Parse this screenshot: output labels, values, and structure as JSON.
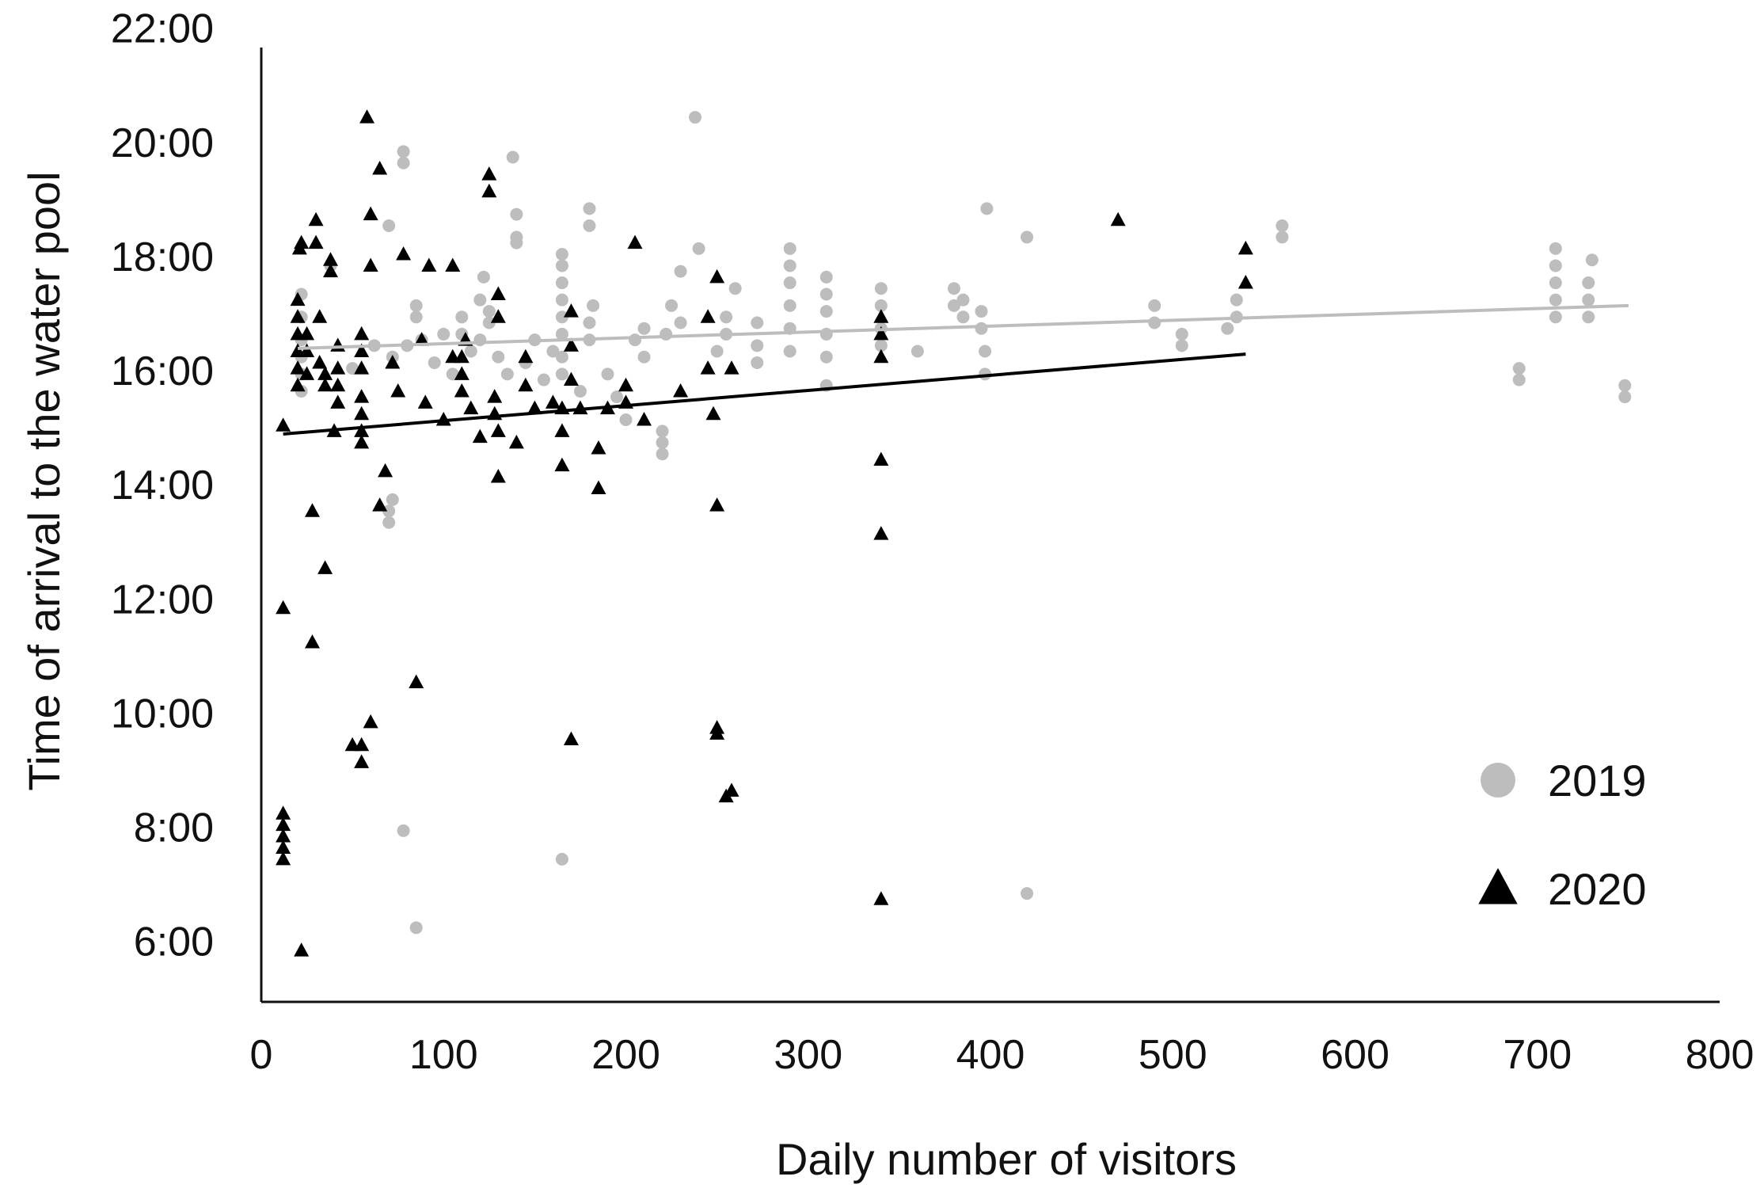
{
  "chart_data": {
    "type": "scatter",
    "xlabel": "Daily number of visitors",
    "ylabel": "Time of arrival to the water pool",
    "xlim": [
      0,
      800
    ],
    "ylim": [
      5,
      22
    ],
    "x_ticks": [
      0,
      100,
      200,
      300,
      400,
      500,
      600,
      700,
      800
    ],
    "x_tick_labels": [
      "0",
      "100",
      "200",
      "300",
      "400",
      "500",
      "600",
      "700",
      "800"
    ],
    "y_ticks": [
      6,
      8,
      10,
      12,
      14,
      16,
      18,
      20,
      22
    ],
    "y_tick_labels": [
      "6:00",
      "8:00",
      "10:00",
      "12:00",
      "14:00",
      "16:00",
      "18:00",
      "20:00",
      "22:00"
    ],
    "grid": false,
    "legend_position": "right",
    "series": [
      {
        "name": "2019",
        "marker": "circle",
        "color": "#bdbdbd",
        "trend": {
          "x": [
            20,
            750
          ],
          "y": [
            16.45,
            17.2
          ]
        },
        "points": [
          [
            22,
            15.7
          ],
          [
            22,
            16.0
          ],
          [
            22,
            16.3
          ],
          [
            22,
            16.6
          ],
          [
            22,
            17.0
          ],
          [
            22,
            17.4
          ],
          [
            38,
            17.9
          ],
          [
            50,
            16.1
          ],
          [
            62,
            16.5
          ],
          [
            70,
            18.6
          ],
          [
            70,
            13.4
          ],
          [
            70,
            13.6
          ],
          [
            72,
            13.8
          ],
          [
            72,
            16.3
          ],
          [
            78,
            19.7
          ],
          [
            78,
            19.9
          ],
          [
            78,
            8.0
          ],
          [
            80,
            16.5
          ],
          [
            85,
            6.3
          ],
          [
            85,
            17.0
          ],
          [
            85,
            17.2
          ],
          [
            88,
            16.6
          ],
          [
            95,
            16.2
          ],
          [
            100,
            16.7
          ],
          [
            105,
            16.0
          ],
          [
            110,
            16.7
          ],
          [
            110,
            17.0
          ],
          [
            115,
            16.4
          ],
          [
            120,
            16.6
          ],
          [
            120,
            17.3
          ],
          [
            122,
            17.7
          ],
          [
            125,
            16.9
          ],
          [
            125,
            17.1
          ],
          [
            130,
            16.3
          ],
          [
            135,
            16.0
          ],
          [
            138,
            19.8
          ],
          [
            140,
            18.8
          ],
          [
            140,
            18.3
          ],
          [
            140,
            18.4
          ],
          [
            145,
            16.2
          ],
          [
            150,
            16.6
          ],
          [
            155,
            15.9
          ],
          [
            160,
            16.4
          ],
          [
            165,
            7.5
          ],
          [
            165,
            16.0
          ],
          [
            165,
            16.3
          ],
          [
            165,
            16.7
          ],
          [
            165,
            17.0
          ],
          [
            165,
            17.3
          ],
          [
            165,
            17.6
          ],
          [
            165,
            17.9
          ],
          [
            165,
            18.1
          ],
          [
            175,
            15.7
          ],
          [
            180,
            18.9
          ],
          [
            180,
            18.6
          ],
          [
            180,
            16.6
          ],
          [
            180,
            16.9
          ],
          [
            182,
            17.2
          ],
          [
            190,
            16.0
          ],
          [
            195,
            15.6
          ],
          [
            200,
            15.2
          ],
          [
            205,
            16.6
          ],
          [
            210,
            16.8
          ],
          [
            210,
            16.3
          ],
          [
            220,
            14.6
          ],
          [
            220,
            14.8
          ],
          [
            220,
            15.0
          ],
          [
            222,
            16.7
          ],
          [
            225,
            17.2
          ],
          [
            230,
            17.8
          ],
          [
            230,
            16.9
          ],
          [
            238,
            20.5
          ],
          [
            240,
            18.2
          ],
          [
            250,
            16.4
          ],
          [
            255,
            16.7
          ],
          [
            255,
            17.0
          ],
          [
            260,
            17.5
          ],
          [
            272,
            16.2
          ],
          [
            272,
            16.5
          ],
          [
            272,
            16.9
          ],
          [
            290,
            16.4
          ],
          [
            290,
            16.8
          ],
          [
            290,
            17.2
          ],
          [
            290,
            17.6
          ],
          [
            290,
            17.9
          ],
          [
            290,
            18.2
          ],
          [
            310,
            15.8
          ],
          [
            310,
            16.3
          ],
          [
            310,
            16.7
          ],
          [
            310,
            17.1
          ],
          [
            310,
            17.4
          ],
          [
            310,
            17.7
          ],
          [
            340,
            16.5
          ],
          [
            340,
            16.8
          ],
          [
            340,
            17.2
          ],
          [
            340,
            17.5
          ],
          [
            360,
            16.4
          ],
          [
            380,
            17.2
          ],
          [
            380,
            17.5
          ],
          [
            385,
            17.0
          ],
          [
            385,
            17.3
          ],
          [
            395,
            16.8
          ],
          [
            395,
            17.1
          ],
          [
            397,
            16.0
          ],
          [
            397,
            16.4
          ],
          [
            398,
            18.9
          ],
          [
            420,
            18.4
          ],
          [
            420,
            6.9
          ],
          [
            490,
            16.9
          ],
          [
            490,
            17.2
          ],
          [
            505,
            16.7
          ],
          [
            505,
            16.5
          ],
          [
            530,
            16.8
          ],
          [
            535,
            17.0
          ],
          [
            535,
            17.3
          ],
          [
            560,
            18.4
          ],
          [
            560,
            18.6
          ],
          [
            690,
            15.9
          ],
          [
            690,
            16.1
          ],
          [
            710,
            17.0
          ],
          [
            710,
            17.3
          ],
          [
            710,
            17.6
          ],
          [
            710,
            17.9
          ],
          [
            710,
            18.2
          ],
          [
            728,
            17.0
          ],
          [
            728,
            17.3
          ],
          [
            728,
            17.6
          ],
          [
            730,
            18.0
          ],
          [
            748,
            15.6
          ],
          [
            748,
            15.8
          ]
        ]
      },
      {
        "name": "2020",
        "marker": "triangle",
        "color": "#000000",
        "trend": {
          "x": [
            12,
            540
          ],
          "y": [
            14.95,
            16.35
          ]
        },
        "points": [
          [
            12,
            15.1
          ],
          [
            12,
            11.9
          ],
          [
            12,
            7.5
          ],
          [
            12,
            7.7
          ],
          [
            12,
            7.9
          ],
          [
            12,
            8.1
          ],
          [
            12,
            8.3
          ],
          [
            20,
            15.8
          ],
          [
            20,
            16.1
          ],
          [
            20,
            16.4
          ],
          [
            20,
            16.7
          ],
          [
            20,
            17.0
          ],
          [
            20,
            17.3
          ],
          [
            21,
            18.2
          ],
          [
            22,
            18.3
          ],
          [
            22,
            5.9
          ],
          [
            25,
            16.0
          ],
          [
            25,
            16.4
          ],
          [
            25,
            16.7
          ],
          [
            28,
            13.6
          ],
          [
            28,
            11.3
          ],
          [
            30,
            18.7
          ],
          [
            30,
            18.3
          ],
          [
            32,
            17.0
          ],
          [
            32,
            16.2
          ],
          [
            35,
            12.6
          ],
          [
            35,
            15.8
          ],
          [
            35,
            16.0
          ],
          [
            38,
            17.8
          ],
          [
            38,
            18.0
          ],
          [
            40,
            15.0
          ],
          [
            42,
            15.5
          ],
          [
            42,
            15.8
          ],
          [
            42,
            16.1
          ],
          [
            42,
            16.5
          ],
          [
            50,
            9.5
          ],
          [
            55,
            14.8
          ],
          [
            55,
            15.0
          ],
          [
            55,
            15.3
          ],
          [
            55,
            15.6
          ],
          [
            55,
            16.1
          ],
          [
            55,
            16.4
          ],
          [
            55,
            16.7
          ],
          [
            55,
            9.2
          ],
          [
            55,
            9.5
          ],
          [
            58,
            20.5
          ],
          [
            60,
            9.9
          ],
          [
            60,
            18.8
          ],
          [
            60,
            17.9
          ],
          [
            65,
            19.6
          ],
          [
            65,
            13.7
          ],
          [
            68,
            14.3
          ],
          [
            72,
            16.2
          ],
          [
            75,
            15.7
          ],
          [
            78,
            18.1
          ],
          [
            85,
            10.6
          ],
          [
            88,
            16.6
          ],
          [
            90,
            15.5
          ],
          [
            92,
            17.9
          ],
          [
            100,
            15.2
          ],
          [
            105,
            16.3
          ],
          [
            105,
            17.9
          ],
          [
            110,
            15.7
          ],
          [
            110,
            16.0
          ],
          [
            110,
            16.3
          ],
          [
            112,
            16.6
          ],
          [
            115,
            15.4
          ],
          [
            120,
            14.9
          ],
          [
            125,
            19.2
          ],
          [
            125,
            19.5
          ],
          [
            128,
            15.3
          ],
          [
            128,
            15.6
          ],
          [
            130,
            17.0
          ],
          [
            130,
            17.4
          ],
          [
            130,
            14.2
          ],
          [
            130,
            15.0
          ],
          [
            140,
            14.8
          ],
          [
            145,
            16.3
          ],
          [
            145,
            15.8
          ],
          [
            150,
            15.4
          ],
          [
            160,
            15.5
          ],
          [
            165,
            14.4
          ],
          [
            165,
            15.0
          ],
          [
            165,
            15.4
          ],
          [
            170,
            9.6
          ],
          [
            170,
            15.9
          ],
          [
            170,
            16.5
          ],
          [
            170,
            17.1
          ],
          [
            175,
            15.4
          ],
          [
            185,
            14.0
          ],
          [
            185,
            14.7
          ],
          [
            190,
            15.4
          ],
          [
            200,
            15.5
          ],
          [
            200,
            15.8
          ],
          [
            205,
            18.3
          ],
          [
            210,
            15.2
          ],
          [
            230,
            15.7
          ],
          [
            245,
            17.0
          ],
          [
            245,
            16.1
          ],
          [
            248,
            15.3
          ],
          [
            250,
            17.7
          ],
          [
            250,
            13.7
          ],
          [
            250,
            9.7
          ],
          [
            250,
            9.8
          ],
          [
            255,
            8.6
          ],
          [
            258,
            8.7
          ],
          [
            258,
            16.1
          ],
          [
            340,
            16.3
          ],
          [
            340,
            16.7
          ],
          [
            340,
            17.0
          ],
          [
            340,
            14.5
          ],
          [
            340,
            13.2
          ],
          [
            340,
            6.8
          ],
          [
            470,
            18.7
          ],
          [
            540,
            18.2
          ],
          [
            540,
            17.6
          ]
        ]
      }
    ]
  }
}
